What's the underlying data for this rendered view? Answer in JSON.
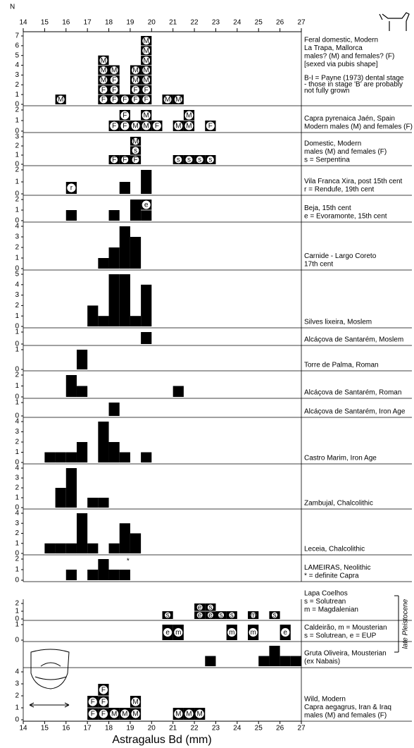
{
  "chart_data": {
    "type": "histogram",
    "y_label": "N",
    "x_label": "Astragalus Bd (mm)",
    "xlim": [
      14,
      27
    ],
    "xticks": [
      14,
      15,
      16,
      17,
      18,
      19,
      20,
      21,
      22,
      23,
      24,
      25,
      26,
      27
    ],
    "bins": [
      14,
      14.5,
      15,
      15.5,
      16,
      16.5,
      17,
      17.5,
      18,
      18.5,
      19,
      19.5,
      20,
      20.5,
      21,
      21.5,
      22,
      22.5,
      23,
      23.5,
      24,
      24.5,
      25,
      25.5,
      26,
      26.5,
      27
    ],
    "color": "#000000",
    "bracket_label": "late Pleistocene",
    "panels": [
      {
        "label": [
          "Feral domestic, Modern",
          "La Trapa, Mallorca",
          "males? (M) and females? (F)",
          "[sexed via pubis shape]"
        ],
        "note": [
          "B-I = Payne (1973) dental stage",
          "- those in stage 'B' are probably",
          "not fully grown"
        ],
        "ylim": [
          0,
          7
        ],
        "yticks": [
          0,
          1,
          2,
          3,
          4,
          5,
          6,
          7
        ],
        "values": [
          0,
          0,
          0,
          1,
          0,
          0,
          0,
          5,
          4,
          1,
          4,
          7,
          0,
          1,
          1,
          0,
          0,
          0,
          0,
          0,
          0,
          0,
          0,
          0,
          0,
          0
        ],
        "symbols": [
          null,
          null,
          null,
          [
            "M"
          ],
          null,
          null,
          null,
          [
            "F",
            "F",
            "M",
            "M",
            "M"
          ],
          [
            "F",
            "F",
            "F",
            "M"
          ],
          [
            "F"
          ],
          [
            "F",
            "F",
            "M",
            "M"
          ],
          [
            "F",
            "F",
            "M",
            "M",
            "M",
            "M",
            "M"
          ],
          null,
          [
            "M"
          ],
          [
            "M"
          ],
          null,
          null,
          null,
          null,
          null,
          null,
          null,
          null,
          null,
          null,
          null
        ]
      },
      {
        "label": [
          "Capra pyrenaica Jaén, Spain",
          "Modern males (M) and females (F)"
        ],
        "ylim": [
          0,
          2
        ],
        "yticks": [
          0,
          1,
          2
        ],
        "values": [
          0,
          0,
          0,
          0,
          0,
          0,
          0,
          0,
          1,
          2,
          1,
          2,
          1,
          0,
          1,
          2,
          0,
          1,
          0,
          0,
          0,
          0,
          0,
          0,
          0,
          0
        ],
        "symbols": [
          null,
          null,
          null,
          null,
          null,
          null,
          null,
          null,
          [
            "F"
          ],
          [
            "F",
            "F"
          ],
          [
            "M"
          ],
          [
            "M",
            "M"
          ],
          [
            "F"
          ],
          null,
          [
            "M"
          ],
          [
            "M",
            "M"
          ],
          null,
          [
            "F"
          ],
          null,
          null,
          null,
          null,
          null,
          null,
          null,
          null
        ]
      },
      {
        "label": [
          "Domestic, Modern",
          "males (M) and females (F)",
          "s = Serpentina"
        ],
        "ylim": [
          0,
          3
        ],
        "yticks": [
          0,
          1,
          2,
          3
        ],
        "values": [
          0,
          0,
          0,
          0,
          0,
          0,
          0,
          0,
          1,
          1,
          3,
          0,
          0,
          0,
          1,
          1,
          1,
          1,
          0,
          0,
          0,
          0,
          0,
          0,
          0,
          0
        ],
        "symbols": [
          null,
          null,
          null,
          null,
          null,
          null,
          null,
          null,
          [
            "F"
          ],
          [
            "F"
          ],
          [
            "F",
            "s",
            "M"
          ],
          null,
          null,
          null,
          [
            "s"
          ],
          [
            "s"
          ],
          [
            "s"
          ],
          [
            "s"
          ],
          null,
          null,
          null,
          null,
          null,
          null,
          null,
          null
        ]
      },
      {
        "label": [
          "Vila Franca Xira, post 15th cent",
          "r = Rendufe, 19th cent"
        ],
        "ylim": [
          0,
          2
        ],
        "yticks": [
          0,
          1,
          2
        ],
        "values": [
          0,
          0,
          0,
          0,
          1,
          0,
          0,
          0,
          0,
          1,
          0,
          2,
          0,
          0,
          0,
          0,
          0,
          0,
          0,
          0,
          0,
          0,
          0,
          0,
          0,
          0
        ],
        "symbols": [
          null,
          null,
          null,
          null,
          [
            "r"
          ],
          null,
          null,
          null,
          null,
          null,
          null,
          null,
          null,
          null,
          null,
          null,
          null,
          null,
          null,
          null,
          null,
          null,
          null,
          null,
          null,
          null
        ]
      },
      {
        "label": [
          "Beja, 15th cent",
          "e = Evoramonte, 15th cent"
        ],
        "ylim": [
          0,
          2
        ],
        "yticks": [
          0,
          1,
          2
        ],
        "values": [
          0,
          0,
          0,
          0,
          1,
          0,
          0,
          0,
          1,
          0,
          2,
          2,
          0,
          0,
          0,
          0,
          0,
          0,
          0,
          0,
          0,
          0,
          0,
          0,
          0,
          0
        ],
        "symbols": [
          null,
          null,
          null,
          null,
          null,
          null,
          null,
          null,
          null,
          null,
          null,
          [
            null,
            "e"
          ],
          null,
          null,
          null,
          null,
          null,
          null,
          null,
          null,
          null,
          null,
          null,
          null,
          null,
          null
        ]
      },
      {
        "label": [
          "Carnide - Largo Coreto",
          "17th cent"
        ],
        "ylim": [
          0,
          4
        ],
        "yticks": [
          0,
          1,
          2,
          3,
          4
        ],
        "values": [
          0,
          0,
          0,
          0,
          0,
          0,
          0,
          1,
          2,
          4,
          3,
          0,
          0,
          0,
          0,
          0,
          0,
          0,
          0,
          0,
          0,
          0,
          0,
          0,
          0,
          0
        ]
      },
      {
        "label": [
          "Silves lixeira, Moslem"
        ],
        "ylim": [
          0,
          5
        ],
        "yticks": [
          0,
          1,
          2,
          3,
          4,
          5
        ],
        "values": [
          0,
          0,
          0,
          0,
          0,
          0,
          2,
          1,
          5,
          5,
          1,
          4,
          0,
          0,
          0,
          0,
          0,
          0,
          0,
          0,
          0,
          0,
          0,
          0,
          0,
          0
        ]
      },
      {
        "label": [
          "Alcáçova de Santarém, Moslem"
        ],
        "ylim": [
          0,
          1
        ],
        "yticks": [
          0,
          1
        ],
        "values": [
          0,
          0,
          0,
          0,
          0,
          0,
          0,
          0,
          0,
          0,
          0,
          1,
          0,
          0,
          0,
          0,
          0,
          0,
          0,
          0,
          0,
          0,
          0,
          0,
          0,
          0
        ]
      },
      {
        "label": [
          "Torre de Palma, Roman"
        ],
        "ylim": [
          0,
          1
        ],
        "yticks": [
          0,
          1
        ],
        "values": [
          0,
          0,
          0,
          0,
          0,
          1,
          0,
          0,
          0,
          0,
          0,
          0,
          0,
          0,
          0,
          0,
          0,
          0,
          0,
          0,
          0,
          0,
          0,
          0,
          0,
          0
        ]
      },
      {
        "label": [
          "Alcáçova de Santarém, Roman"
        ],
        "ylim": [
          0,
          2
        ],
        "yticks": [
          0,
          1,
          2
        ],
        "values": [
          0,
          0,
          0,
          0,
          2,
          1,
          0,
          0,
          0,
          0,
          0,
          0,
          0,
          0,
          1,
          0,
          0,
          0,
          0,
          0,
          0,
          0,
          0,
          0,
          0,
          0
        ]
      },
      {
        "label": [
          "Alcáçova de Santarém, Iron Age"
        ],
        "ylim": [
          0,
          1
        ],
        "yticks": [
          0,
          1
        ],
        "values": [
          0,
          0,
          0,
          0,
          0,
          0,
          0,
          0,
          1,
          0,
          0,
          0,
          0,
          0,
          0,
          0,
          0,
          0,
          0,
          0,
          0,
          0,
          0,
          0,
          0,
          0
        ]
      },
      {
        "label": [
          "Castro Marim, Iron Age"
        ],
        "ylim": [
          0,
          4
        ],
        "yticks": [
          0,
          1,
          2,
          3,
          4
        ],
        "values": [
          0,
          0,
          1,
          1,
          1,
          2,
          0,
          4,
          2,
          1,
          0,
          1,
          0,
          0,
          0,
          0,
          0,
          0,
          0,
          0,
          0,
          0,
          0,
          0,
          0,
          0
        ]
      },
      {
        "label": [
          "Zambujal, Chalcolithic"
        ],
        "ylim": [
          0,
          4
        ],
        "yticks": [
          0,
          1,
          2,
          3,
          4
        ],
        "values": [
          0,
          0,
          0,
          2,
          4,
          0,
          1,
          1,
          0,
          0,
          0,
          0,
          0,
          0,
          0,
          0,
          0,
          0,
          0,
          0,
          0,
          0,
          0,
          0,
          0,
          0
        ]
      },
      {
        "label": [
          "Leceia, Chalcolithic"
        ],
        "ylim": [
          0,
          4
        ],
        "yticks": [
          0,
          1,
          2,
          3,
          4
        ],
        "values": [
          0,
          0,
          1,
          1,
          1,
          4,
          1,
          0,
          1,
          3,
          2,
          0,
          0,
          0,
          0,
          0,
          0,
          0,
          0,
          0,
          0,
          0,
          0,
          0,
          0,
          0
        ]
      },
      {
        "label": [
          "LAMEIRAS, Neolithic",
          "* = definite Capra"
        ],
        "annotation": "*",
        "annotation_x": 18.9,
        "ylim": [
          0,
          2
        ],
        "yticks": [
          0,
          1,
          2
        ],
        "values": [
          0,
          0,
          0,
          0,
          1,
          0,
          1,
          2,
          1,
          1,
          0,
          0,
          0,
          0,
          0,
          0,
          0,
          0,
          0,
          0,
          0,
          0,
          0,
          0,
          0,
          0
        ]
      },
      {
        "label": [
          "Lapa Coelhos",
          "s = Solutrean",
          "m = Magdalenian"
        ],
        "ylim": [
          0,
          2
        ],
        "yticks": [
          0,
          1,
          2
        ],
        "values": [
          0,
          0,
          0,
          0,
          0,
          0,
          0,
          0,
          0,
          0,
          0,
          0,
          0,
          1,
          0,
          0,
          2,
          2,
          1,
          1,
          0,
          1,
          0,
          1,
          0,
          0
        ],
        "symbols": [
          null,
          null,
          null,
          null,
          null,
          null,
          null,
          null,
          null,
          null,
          null,
          null,
          null,
          [
            "s"
          ],
          null,
          null,
          [
            "e",
            "e"
          ],
          [
            "e",
            "s"
          ],
          [
            "s"
          ],
          [
            "s"
          ],
          null,
          [
            "m"
          ],
          null,
          [
            "s"
          ],
          null,
          null
        ]
      },
      {
        "label": [
          "Caldeirão, m = Mousterian",
          "s = Solutrean, e = EUP"
        ],
        "ylim": [
          0,
          1
        ],
        "yticks": [
          0,
          1
        ],
        "values": [
          0,
          0,
          0,
          0,
          0,
          0,
          0,
          0,
          0,
          0,
          0,
          0,
          0,
          1,
          1,
          0,
          0,
          0,
          0,
          1,
          0,
          1,
          0,
          0,
          1,
          0
        ],
        "symbols": [
          null,
          null,
          null,
          null,
          null,
          null,
          null,
          null,
          null,
          null,
          null,
          null,
          null,
          [
            "e"
          ],
          [
            "m"
          ],
          null,
          null,
          null,
          null,
          [
            "m"
          ],
          null,
          [
            "m"
          ],
          null,
          null,
          [
            "e"
          ],
          null
        ]
      },
      {
        "label": [
          "Gruta Oliveira, Mousterian",
          "(ex Nabais)"
        ],
        "ylim": [
          0,
          2
        ],
        "values": [
          0,
          0,
          0,
          0,
          0,
          0,
          0,
          0,
          0,
          0,
          0,
          0,
          0,
          0,
          0,
          0,
          0,
          1,
          0,
          0,
          0,
          0,
          1,
          2,
          1,
          1
        ]
      },
      {
        "label": [
          "Wild, Modern",
          "Capra aegagrus, Iran & Iraq",
          "males (M) and females (F)"
        ],
        "ylim": [
          0,
          4
        ],
        "yticks": [
          0,
          1,
          2,
          3,
          4
        ],
        "values": [
          0,
          0,
          0,
          0,
          0,
          0,
          2,
          3,
          1,
          1,
          2,
          0,
          0,
          0,
          1,
          1,
          1,
          0,
          0,
          0,
          0,
          0,
          0,
          0,
          0,
          0
        ],
        "symbols": [
          null,
          null,
          null,
          null,
          null,
          null,
          [
            "F",
            "F"
          ],
          [
            "F",
            "F",
            "F"
          ],
          [
            "M"
          ],
          [
            "M"
          ],
          [
            "M",
            "M"
          ],
          null,
          null,
          null,
          [
            "M"
          ],
          [
            "M"
          ],
          [
            "M"
          ],
          null,
          null,
          null,
          null,
          null,
          null,
          null,
          null,
          null
        ]
      }
    ]
  }
}
